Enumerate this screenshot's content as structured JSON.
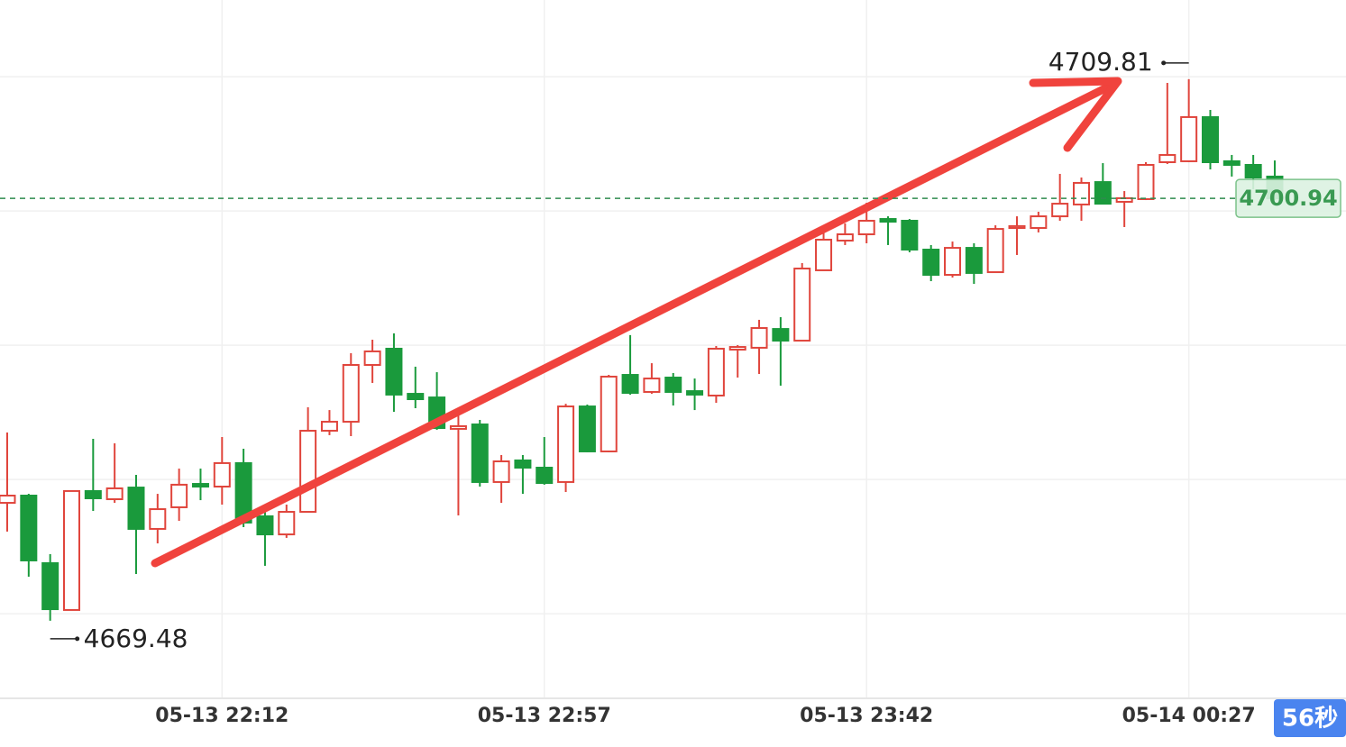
{
  "chart_data": {
    "type": "candlestick",
    "categories": [
      null,
      null,
      null,
      null,
      null,
      null,
      null,
      null,
      null,
      null,
      "05-13 22:12",
      null,
      null,
      null,
      null,
      null,
      null,
      null,
      null,
      null,
      null,
      null,
      null,
      null,
      null,
      "05-13 22:57",
      null,
      null,
      null,
      null,
      null,
      null,
      null,
      null,
      null,
      null,
      null,
      null,
      null,
      null,
      "05-13 23:42",
      null,
      null,
      null,
      null,
      null,
      null,
      null,
      null,
      null,
      null,
      null,
      null,
      null,
      null,
      "05-14 00:27",
      null,
      null,
      null,
      null
    ],
    "open": [
      4678.26,
      4678.8,
      4673.77,
      4670.28,
      4679.14,
      4678.53,
      4679.4,
      4676.32,
      4677.93,
      4679.67,
      4679.47,
      4681.22,
      4677.26,
      4675.91,
      4677.59,
      4683.63,
      4684.3,
      4688.53,
      4689.74,
      4686.38,
      4686.11,
      4683.77,
      4684.1,
      4679.81,
      4681.42,
      4680.88,
      4679.81,
      4685.44,
      4682.09,
      4687.79,
      4686.52,
      4687.59,
      4686.58,
      4686.25,
      4689.67,
      4689.81,
      4691.21,
      4690.34,
      4695.58,
      4697.79,
      4698.26,
      4699.4,
      4699.27,
      4697.12,
      4695.24,
      4697.25,
      4695.44,
      4698.73,
      4698.73,
      4699.6,
      4700.48,
      4702.15,
      4700.68,
      4700.88,
      4703.63,
      4703.7,
      4706.99,
      4703.7,
      4703.43,
      4702.56
    ],
    "high": [
      4683.5,
      4678.93,
      4674.44,
      4679.14,
      4683.03,
      4682.69,
      4680.34,
      4678.93,
      4680.81,
      4680.81,
      4683.16,
      4682.29,
      4677.79,
      4678.13,
      4685.38,
      4685.17,
      4689.4,
      4690.41,
      4690.88,
      4688.4,
      4687.99,
      4684.84,
      4684.44,
      4681.82,
      4681.82,
      4683.16,
      4685.64,
      4685.58,
      4687.79,
      4690.75,
      4688.66,
      4687.93,
      4687.52,
      4689.94,
      4690.01,
      4691.89,
      4692.09,
      4696.11,
      4698.93,
      4699.07,
      4700.61,
      4699.6,
      4699.4,
      4697.46,
      4697.72,
      4697.59,
      4698.93,
      4699.6,
      4699.94,
      4702.76,
      4702.49,
      4703.56,
      4701.48,
      4703.63,
      4709.54,
      4709.81,
      4707.52,
      4704.17,
      4704.17,
      4703.76
    ],
    "low": [
      4676.12,
      4672.76,
      4669.48,
      4670.28,
      4677.66,
      4678.26,
      4672.96,
      4675.24,
      4676.92,
      4678.46,
      4678.13,
      4676.45,
      4673.57,
      4675.65,
      4677.59,
      4683.3,
      4683.23,
      4687.19,
      4685.04,
      4685.31,
      4683.7,
      4677.32,
      4679.47,
      4678.26,
      4678.93,
      4679.61,
      4679.07,
      4682.02,
      4682.02,
      4686.32,
      4686.38,
      4685.51,
      4685.17,
      4685.71,
      4687.59,
      4687.86,
      4686.99,
      4690.34,
      4695.58,
      4697.46,
      4697.59,
      4697.46,
      4696.92,
      4694.77,
      4695.04,
      4694.57,
      4695.38,
      4696.72,
      4698.4,
      4699.27,
      4699.27,
      4700.54,
      4698.8,
      4700.81,
      4703.5,
      4703.63,
      4703.09,
      4702.56,
      4701.62,
      4700.81
    ],
    "close": [
      4678.8,
      4673.97,
      4670.34,
      4679.14,
      4678.6,
      4679.34,
      4676.32,
      4677.79,
      4679.61,
      4679.47,
      4681.22,
      4676.79,
      4675.91,
      4677.59,
      4683.63,
      4684.3,
      4688.53,
      4689.54,
      4686.32,
      4685.98,
      4683.83,
      4683.97,
      4679.81,
      4681.35,
      4680.88,
      4679.74,
      4685.44,
      4682.09,
      4687.66,
      4686.45,
      4687.52,
      4686.52,
      4686.32,
      4689.74,
      4689.87,
      4691.28,
      4690.34,
      4695.71,
      4697.86,
      4698.26,
      4699.27,
      4699.2,
      4697.12,
      4695.24,
      4697.25,
      4695.38,
      4698.66,
      4698.87,
      4699.6,
      4700.54,
      4702.09,
      4700.54,
      4700.95,
      4703.43,
      4704.17,
      4706.99,
      4703.63,
      4703.43,
      4702.49,
      4700.94
    ],
    "up_color": "#e0453c",
    "down_color": "#1a9a3c",
    "ylim": [
      4663.7,
      4715.71
    ],
    "yticks": [
      4670,
      4680,
      4690,
      4700,
      4710
    ],
    "grid": true,
    "max_price": 4709.81,
    "min_price": 4669.48,
    "last_price": 4700.94,
    "countdown": "56秒"
  }
}
